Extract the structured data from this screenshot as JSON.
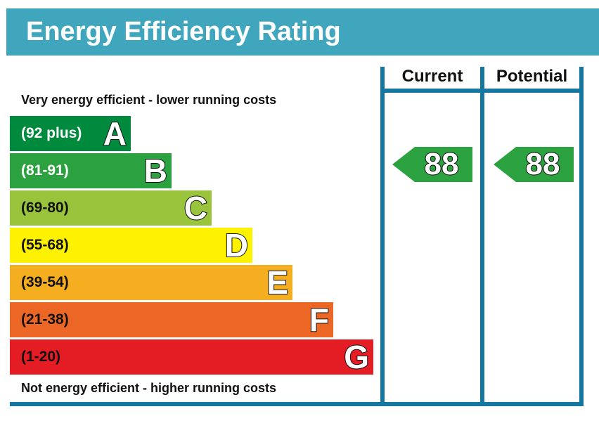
{
  "title": "Energy Efficiency Rating",
  "captions": {
    "top": "Very energy efficient - lower running costs",
    "bottom": "Not energy efficient - higher running costs"
  },
  "columns": {
    "current": "Current",
    "potential": "Potential"
  },
  "chart_data": {
    "type": "bar",
    "title": "Energy Efficiency Rating",
    "bands": [
      {
        "letter": "A",
        "range": "(92 plus)",
        "min": 92,
        "max": 100,
        "color": "#008a3e",
        "text_color": "#ffffff"
      },
      {
        "letter": "B",
        "range": "(81-91)",
        "min": 81,
        "max": 91,
        "color": "#2ca140",
        "text_color": "#ffffff"
      },
      {
        "letter": "C",
        "range": "(69-80)",
        "min": 69,
        "max": 80,
        "color": "#9ac43c",
        "text_color": "#111111"
      },
      {
        "letter": "D",
        "range": "(55-68)",
        "min": 55,
        "max": 68,
        "color": "#fff200",
        "text_color": "#111111"
      },
      {
        "letter": "E",
        "range": "(39-54)",
        "min": 39,
        "max": 54,
        "color": "#f5ae1f",
        "text_color": "#111111"
      },
      {
        "letter": "F",
        "range": "(21-38)",
        "min": 21,
        "max": 38,
        "color": "#ec6726",
        "text_color": "#111111"
      },
      {
        "letter": "G",
        "range": "(1-20)",
        "min": 1,
        "max": 20,
        "color": "#e31d23",
        "text_color": "#111111"
      }
    ],
    "ratings": {
      "current": {
        "value": 88,
        "band": "B",
        "color": "#2ca140"
      },
      "potential": {
        "value": 88,
        "band": "B",
        "color": "#2ca140"
      }
    }
  }
}
